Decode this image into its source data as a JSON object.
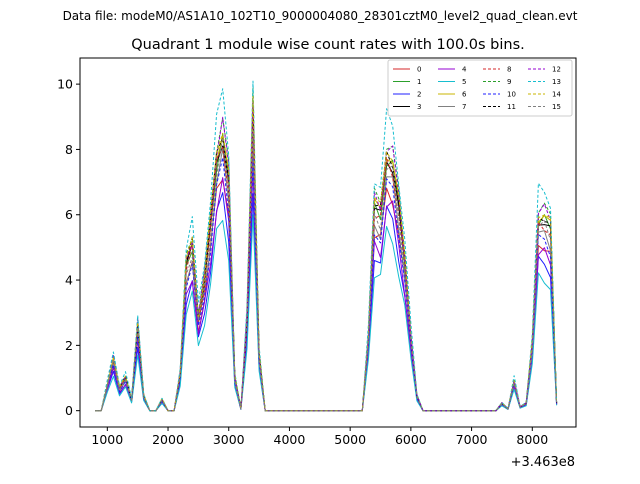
{
  "header": {
    "data_file": "Data file: modeM0/AS1A10_102T10_9000004080_28301cztM0_level2_quad_clean.evt"
  },
  "chart_data": {
    "type": "line",
    "title": "Quadrant 1 module wise count rates with 100.0s bins.",
    "xlabel": "",
    "ylabel": "",
    "x_offset_label": "+3.463e8",
    "xlim": [
      550,
      8720
    ],
    "ylim": [
      -0.5,
      10.8
    ],
    "xticks": [
      1000,
      2000,
      3000,
      4000,
      5000,
      6000,
      7000,
      8000
    ],
    "xtick_labels": [
      "1000",
      "2000",
      "3000",
      "4000",
      "5000",
      "6000",
      "7000",
      "8000"
    ],
    "yticks": [
      0,
      2,
      4,
      6,
      8,
      10
    ],
    "ytick_labels": [
      "0",
      "2",
      "4",
      "6",
      "8",
      "10"
    ],
    "legend_location": "top-right",
    "x": [
      800,
      900,
      1000,
      1100,
      1200,
      1300,
      1400,
      1500,
      1600,
      1700,
      1800,
      1900,
      2000,
      2100,
      2200,
      2300,
      2400,
      2500,
      2600,
      2700,
      2800,
      2900,
      3000,
      3100,
      3200,
      3300,
      3400,
      3500,
      3600,
      3700,
      5100,
      5200,
      5300,
      5400,
      5500,
      5600,
      5700,
      5800,
      5900,
      6000,
      6100,
      6200,
      7300,
      7400,
      7500,
      7600,
      7700,
      7800,
      7900,
      8000,
      8100,
      8200,
      8300,
      8400
    ],
    "base_profile": [
      0,
      0,
      0.7,
      1.4,
      0.6,
      0.9,
      0.3,
      2.3,
      0.4,
      0,
      0,
      0.3,
      0,
      0,
      1.0,
      3.9,
      4.5,
      2.5,
      3.5,
      5.0,
      6.8,
      7.5,
      6.2,
      0.9,
      0.05,
      2.5,
      8.0,
      1.5,
      0,
      0,
      0,
      0,
      2.0,
      5.5,
      5.3,
      6.9,
      6.7,
      5.5,
      4.0,
      2.0,
      0.4,
      0,
      0,
      0,
      0.2,
      0.05,
      0.8,
      0.1,
      0.2,
      1.8,
      5.2,
      5.2,
      4.9,
      0.2
    ],
    "series": [
      {
        "name": "0",
        "color": "#d62728",
        "dash": "solid",
        "scale": 0.98
      },
      {
        "name": "1",
        "color": "#2ca02c",
        "dash": "solid",
        "scale": 1.12
      },
      {
        "name": "2",
        "color": "#1f1fff",
        "dash": "solid",
        "scale": 0.87
      },
      {
        "name": "3",
        "color": "#000000",
        "dash": "solid",
        "scale": 1.12
      },
      {
        "name": "4",
        "color": "#9400d3",
        "dash": "solid",
        "scale": 0.92
      },
      {
        "name": "5",
        "color": "#17becf",
        "dash": "solid",
        "scale": 0.78
      },
      {
        "name": "6",
        "color": "#c8b400",
        "dash": "solid",
        "scale": 1.15
      },
      {
        "name": "7",
        "color": "#808080",
        "dash": "solid",
        "scale": 1.03
      },
      {
        "name": "8",
        "color": "#d62728",
        "dash": "dashed",
        "scale": 1.1
      },
      {
        "name": "9",
        "color": "#2ca02c",
        "dash": "dashed",
        "scale": 1.2
      },
      {
        "name": "10",
        "color": "#1f1fff",
        "dash": "dashed",
        "scale": 1.0
      },
      {
        "name": "11",
        "color": "#000000",
        "dash": "dashed",
        "scale": 1.15
      },
      {
        "name": "12",
        "color": "#9400d3",
        "dash": "dashed",
        "scale": 1.18
      },
      {
        "name": "13",
        "color": "#17becf",
        "dash": "dashed",
        "scale": 1.3
      },
      {
        "name": "14",
        "color": "#c8b400",
        "dash": "dashed",
        "scale": 1.17
      },
      {
        "name": "15",
        "color": "#808080",
        "dash": "dashed",
        "scale": 1.08
      }
    ]
  }
}
